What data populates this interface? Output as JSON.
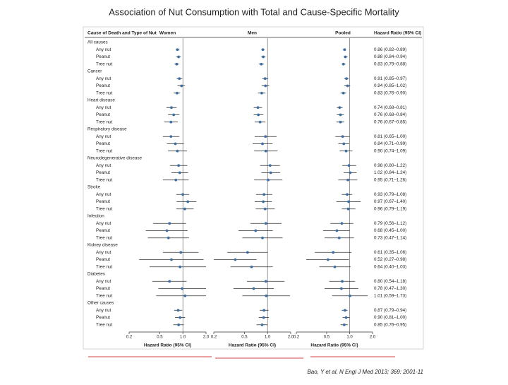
{
  "chart_data": {
    "type": "forest",
    "title": "Association of Nut Consumption with Total and Cause-Specific Mortality",
    "source": "Bao, Y et al, N Engl J Med 2013; 369: 2001-11",
    "row_header": "Cause of Death and Type of Nut",
    "xlabel": "Hazard Ratio (95% CI)",
    "xscale": "log",
    "xlim": [
      0.2,
      2
    ],
    "xticks": [
      0.2,
      0.5,
      {
        "value": 1,
        "label": "1.0"
      },
      {
        "value": 2,
        "label": "2.0"
      }
    ],
    "groups": [
      {
        "name": "All causes",
        "rows": [
          "Any nut",
          "Peanut",
          "Tree nut"
        ]
      },
      {
        "name": "Cancer",
        "rows": [
          "Any nut",
          "Peanut",
          "Tree nut"
        ]
      },
      {
        "name": "Heart disease",
        "rows": [
          "Any nut",
          "Peanut",
          "Tree nut"
        ]
      },
      {
        "name": "Respiratory disease",
        "rows": [
          "Any nut",
          "Peanut",
          "Tree nut"
        ]
      },
      {
        "name": "Neurodegenerative disease",
        "rows": [
          "Any nut",
          "Peanut",
          "Tree nut"
        ]
      },
      {
        "name": "Stroke",
        "rows": [
          "Any nut",
          "Peanut",
          "Tree nut"
        ]
      },
      {
        "name": "Infection",
        "rows": [
          "Any nut",
          "Peanut",
          "Tree nut"
        ]
      },
      {
        "name": "Kidney disease",
        "rows": [
          "Any nut",
          "Peanut",
          "Tree nut"
        ]
      },
      {
        "name": "Diabetes",
        "rows": [
          "Any nut",
          "Peanut",
          "Tree nut"
        ]
      },
      {
        "name": "Other causes",
        "rows": [
          "Any nut",
          "Peanut",
          "Tree nut"
        ]
      }
    ],
    "series": [
      {
        "name": "Women",
        "color": "#3b6ea5",
        "values": [
          0.85,
          0.88,
          0.83,
          0.9,
          0.96,
          0.84,
          0.71,
          0.76,
          0.7,
          0.7,
          0.8,
          0.85,
          0.88,
          0.91,
          0.81,
          1.0,
          1.16,
          1.06,
          0.67,
          0.62,
          0.65,
          0.94,
          0.71,
          0.92,
          0.67,
          0.98,
          1.07,
          0.87,
          0.92,
          0.88
        ],
        "lo": [
          0.81,
          0.82,
          0.78,
          0.83,
          0.85,
          0.76,
          0.61,
          0.64,
          0.57,
          0.55,
          0.62,
          0.64,
          0.68,
          0.71,
          0.55,
          0.82,
          0.83,
          0.82,
          0.41,
          0.33,
          0.35,
          0.55,
          0.27,
          0.37,
          0.4,
          0.48,
          0.45,
          0.77,
          0.79,
          0.75
        ],
        "hi": [
          0.9,
          0.94,
          0.89,
          0.98,
          1.06,
          0.92,
          0.83,
          0.9,
          0.86,
          0.9,
          1.03,
          1.13,
          1.14,
          1.17,
          1.19,
          1.21,
          1.5,
          1.38,
          1.1,
          1.15,
          1.2,
          1.6,
          1.86,
          2.3,
          1.12,
          2.0,
          2.5,
          0.98,
          1.07,
          1.03
        ]
      },
      {
        "name": "Men",
        "color": "#3b6ea5",
        "values": [
          0.87,
          0.88,
          0.83,
          0.93,
          0.94,
          0.84,
          0.75,
          0.76,
          0.8,
          0.94,
          0.86,
          0.95,
          1.08,
          1.1,
          1.02,
          0.9,
          0.88,
          0.93,
          0.95,
          0.7,
          0.86,
          0.55,
          0.38,
          0.62,
          0.95,
          0.66,
          0.96,
          0.9,
          0.89,
          0.85
        ],
        "lo": [
          0.83,
          0.83,
          0.77,
          0.85,
          0.84,
          0.75,
          0.66,
          0.66,
          0.68,
          0.68,
          0.64,
          0.67,
          0.8,
          0.83,
          0.67,
          0.71,
          0.68,
          0.7,
          0.6,
          0.42,
          0.47,
          0.3,
          0.2,
          0.33,
          0.54,
          0.36,
          0.47,
          0.79,
          0.77,
          0.72
        ],
        "hi": [
          0.91,
          0.94,
          0.89,
          1.02,
          1.05,
          0.94,
          0.85,
          0.88,
          0.94,
          1.31,
          1.16,
          1.35,
          1.45,
          1.46,
          1.56,
          1.15,
          1.14,
          1.24,
          1.52,
          1.17,
          1.57,
          1.01,
          0.72,
          1.17,
          1.66,
          1.21,
          1.96,
          1.03,
          1.04,
          1.0
        ]
      },
      {
        "name": "Pooled",
        "color": "#3b6ea5",
        "values": [
          0.86,
          0.88,
          0.83,
          0.91,
          0.94,
          0.83,
          0.74,
          0.76,
          0.76,
          0.81,
          0.84,
          0.9,
          0.98,
          1.02,
          0.95,
          0.93,
          0.97,
          0.96,
          0.79,
          0.68,
          0.73,
          0.61,
          0.52,
          0.64,
          0.8,
          0.78,
          1.01,
          0.87,
          0.9,
          0.85
        ],
        "lo": [
          0.82,
          0.84,
          0.79,
          0.85,
          0.85,
          0.76,
          0.68,
          0.68,
          0.67,
          0.65,
          0.71,
          0.74,
          0.8,
          0.84,
          0.71,
          0.79,
          0.67,
          0.79,
          0.56,
          0.45,
          0.47,
          0.35,
          0.27,
          0.4,
          0.54,
          0.47,
          0.59,
          0.79,
          0.81,
          0.76
        ],
        "hi": [
          0.89,
          0.94,
          0.88,
          0.97,
          1.02,
          0.9,
          0.81,
          0.84,
          0.85,
          1.0,
          0.99,
          1.09,
          1.22,
          1.24,
          1.26,
          1.08,
          1.4,
          1.19,
          1.12,
          1.0,
          1.14,
          1.06,
          0.98,
          1.03,
          1.18,
          1.3,
          1.73,
          0.94,
          1.0,
          0.95
        ],
        "value_labels": [
          "0.86 (0.82–0.89)",
          "0.88 (0.84–0.94)",
          "0.83 (0.79–0.88)",
          "0.91 (0.85–0.97)",
          "0.94 (0.85–1.02)",
          "0.83 (0.76–0.90)",
          "0.74 (0.68–0.81)",
          "0.76 (0.68–0.84)",
          "0.76 (0.67–0.85)",
          "0.81 (0.65–1.00)",
          "0.84 (0.71–0.99)",
          "0.90 (0.74–1.09)",
          "0.98 (0.80–1.22)",
          "1.02 (0.84–1.24)",
          "0.95 (0.71–1.26)",
          "0.93 (0.79–1.08)",
          "0.97 (0.67–1.40)",
          "0.96 (0.79–1.19)",
          "0.79 (0.56–1.12)",
          "0.68 (0.45–1.00)",
          "0.73 (0.47–1.14)",
          "0.61 (0.35–1.06)",
          "0.52 (0.27–0.98)",
          "0.64 (0.40–1.03)",
          "0.80 (0.54–1.18)",
          "0.78 (0.47–1.30)",
          "1.01 (0.59–1.73)",
          "0.87 (0.79–0.94)",
          "0.90 (0.81–1.00)",
          "0.85 (0.76–0.95)"
        ]
      }
    ]
  }
}
